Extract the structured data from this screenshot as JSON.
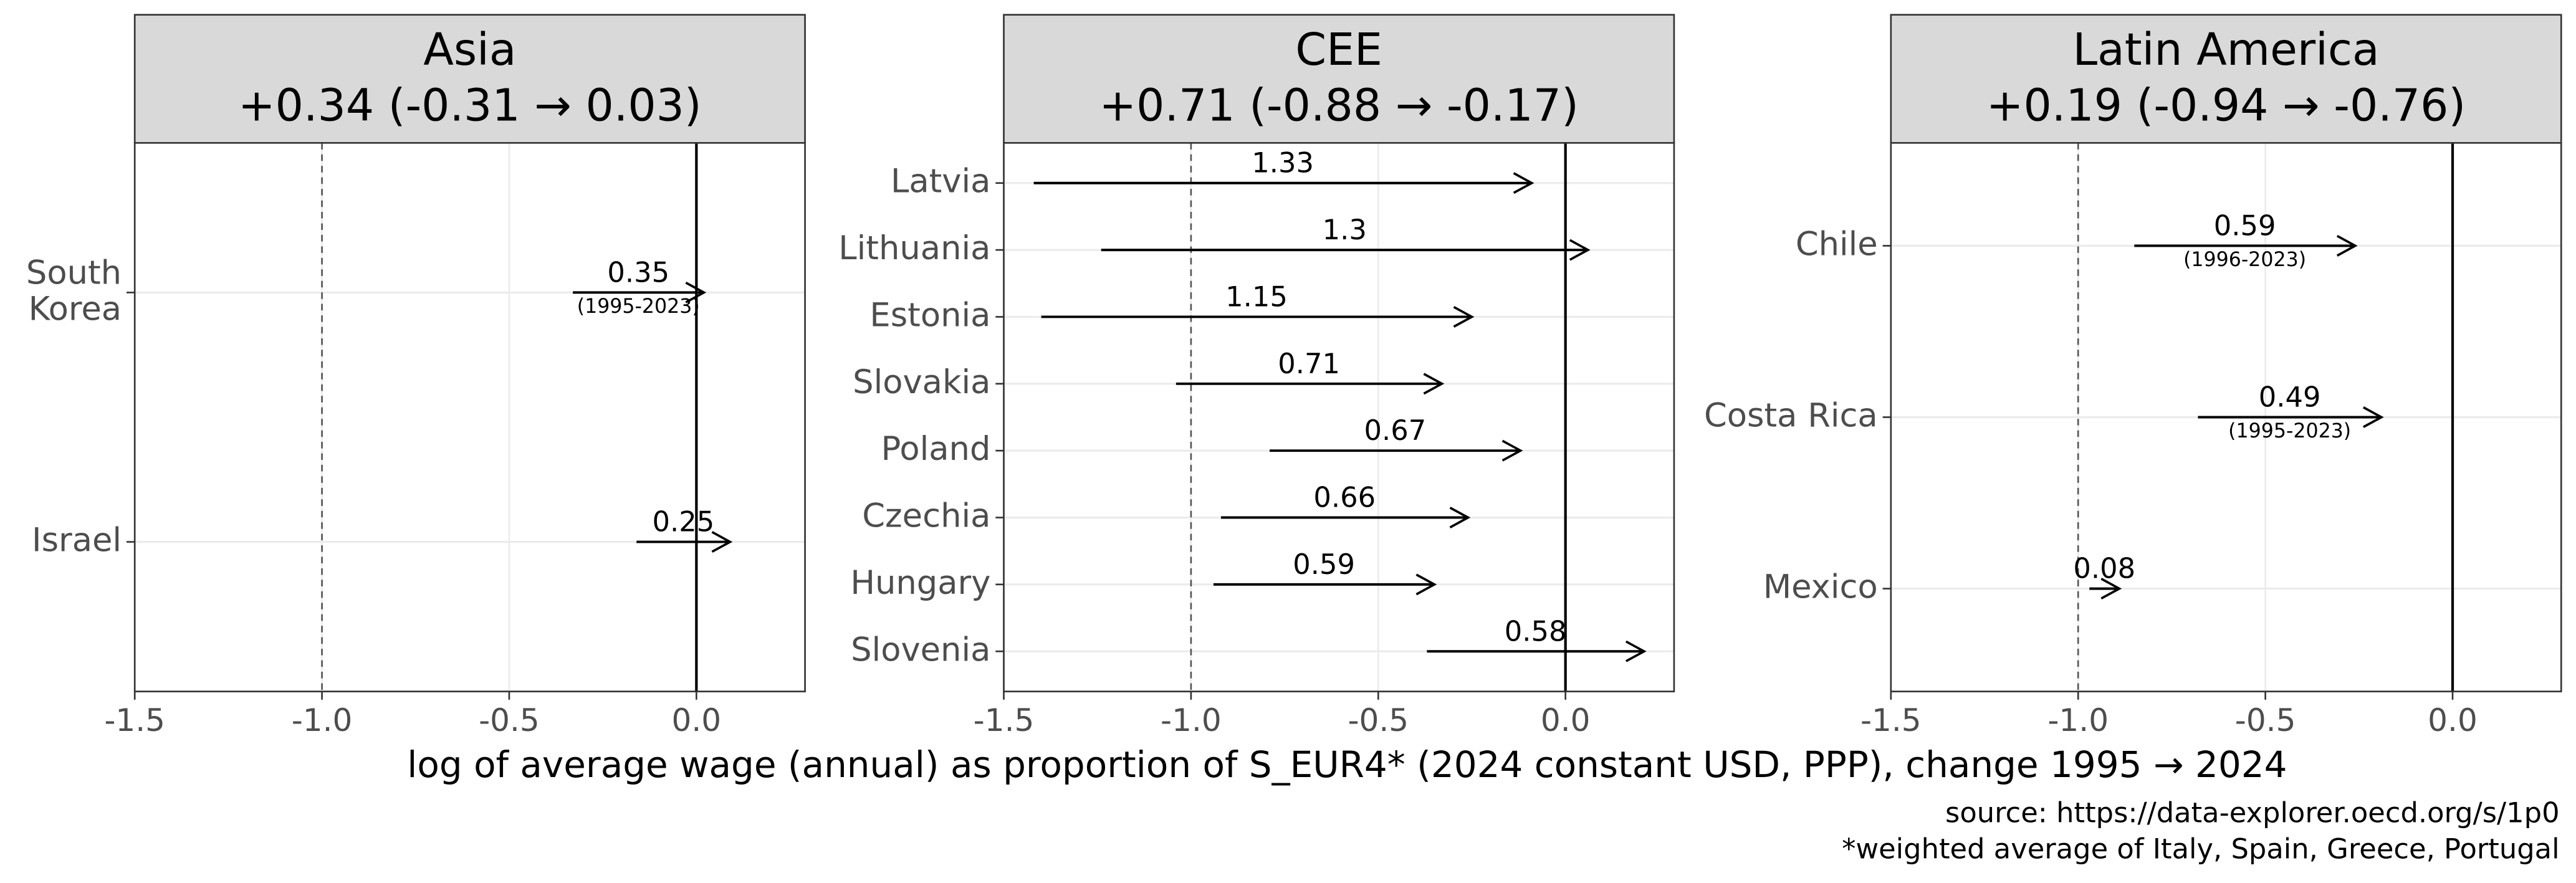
{
  "chart_data": [
    {
      "type": "arrow",
      "title": "Asia",
      "subtitle": "+0.34 (-0.31 → 0.03)",
      "categories": [
        "South\nKorea",
        "Israel"
      ],
      "start": [
        -0.33,
        -0.16
      ],
      "end": [
        0.02,
        0.09
      ],
      "values": [
        0.35,
        0.25
      ],
      "periods": [
        "(1995-2023)",
        null
      ],
      "xlim": [
        -1.5,
        0.29
      ],
      "xticks": [
        {
          "value": -1.5,
          "label": "-1.5"
        },
        {
          "value": -1.0,
          "label": "-1.0"
        },
        {
          "value": -0.5,
          "label": "-0.5"
        },
        {
          "value": 0.0,
          "label": "0.0"
        }
      ],
      "vlines": [
        {
          "value": -1.0,
          "style": "dashed"
        },
        {
          "value": 0.0,
          "style": "solid"
        }
      ],
      "grid": true,
      "color": "#000000"
    },
    {
      "type": "arrow",
      "title": "CEE",
      "subtitle": "+0.71 (-0.88 → -0.17)",
      "categories": [
        "Latvia",
        "Lithuania",
        "Estonia",
        "Slovakia",
        "Poland",
        "Czechia",
        "Hungary",
        "Slovenia"
      ],
      "start": [
        -1.42,
        -1.24,
        -1.4,
        -1.04,
        -0.79,
        -0.92,
        -0.94,
        -0.37
      ],
      "end": [
        -0.09,
        0.06,
        -0.25,
        -0.33,
        -0.12,
        -0.26,
        -0.35,
        0.21
      ],
      "values": [
        1.33,
        1.3,
        1.15,
        0.71,
        0.67,
        0.66,
        0.59,
        0.58
      ],
      "periods": [
        null,
        null,
        null,
        null,
        null,
        null,
        null,
        null
      ],
      "xlim": [
        -1.5,
        0.29
      ],
      "xticks": [
        {
          "value": -1.5,
          "label": "-1.5"
        },
        {
          "value": -1.0,
          "label": "-1.0"
        },
        {
          "value": -0.5,
          "label": "-0.5"
        },
        {
          "value": 0.0,
          "label": "0.0"
        }
      ],
      "vlines": [
        {
          "value": -1.0,
          "style": "dashed"
        },
        {
          "value": 0.0,
          "style": "solid"
        }
      ],
      "grid": true,
      "color": "#000000"
    },
    {
      "type": "arrow",
      "title": "Latin America",
      "subtitle": "+0.19 (-0.94 → -0.76)",
      "categories": [
        "Chile",
        "Costa Rica",
        "Mexico"
      ],
      "start": [
        -0.85,
        -0.68,
        -0.97
      ],
      "end": [
        -0.26,
        -0.19,
        -0.89
      ],
      "values": [
        0.59,
        0.49,
        0.08
      ],
      "periods": [
        "(1996-2023)",
        "(1995-2023)",
        null
      ],
      "xlim": [
        -1.5,
        0.29
      ],
      "xticks": [
        {
          "value": -1.5,
          "label": "-1.5"
        },
        {
          "value": -1.0,
          "label": "-1.0"
        },
        {
          "value": -0.5,
          "label": "-0.5"
        },
        {
          "value": 0.0,
          "label": "0.0"
        }
      ],
      "vlines": [
        {
          "value": -1.0,
          "style": "dashed"
        },
        {
          "value": 0.0,
          "style": "solid"
        }
      ],
      "grid": true,
      "color": "#000000"
    }
  ],
  "figure": {
    "xlabel": "log of average wage (annual) as proportion of S_EUR4* (2024 constant USD, PPP), change 1995 → 2024",
    "caption": [
      "source: https://data-explorer.oecd.org/s/1p0",
      "*weighted average of Italy, Spain, Greece, Portugal"
    ]
  }
}
